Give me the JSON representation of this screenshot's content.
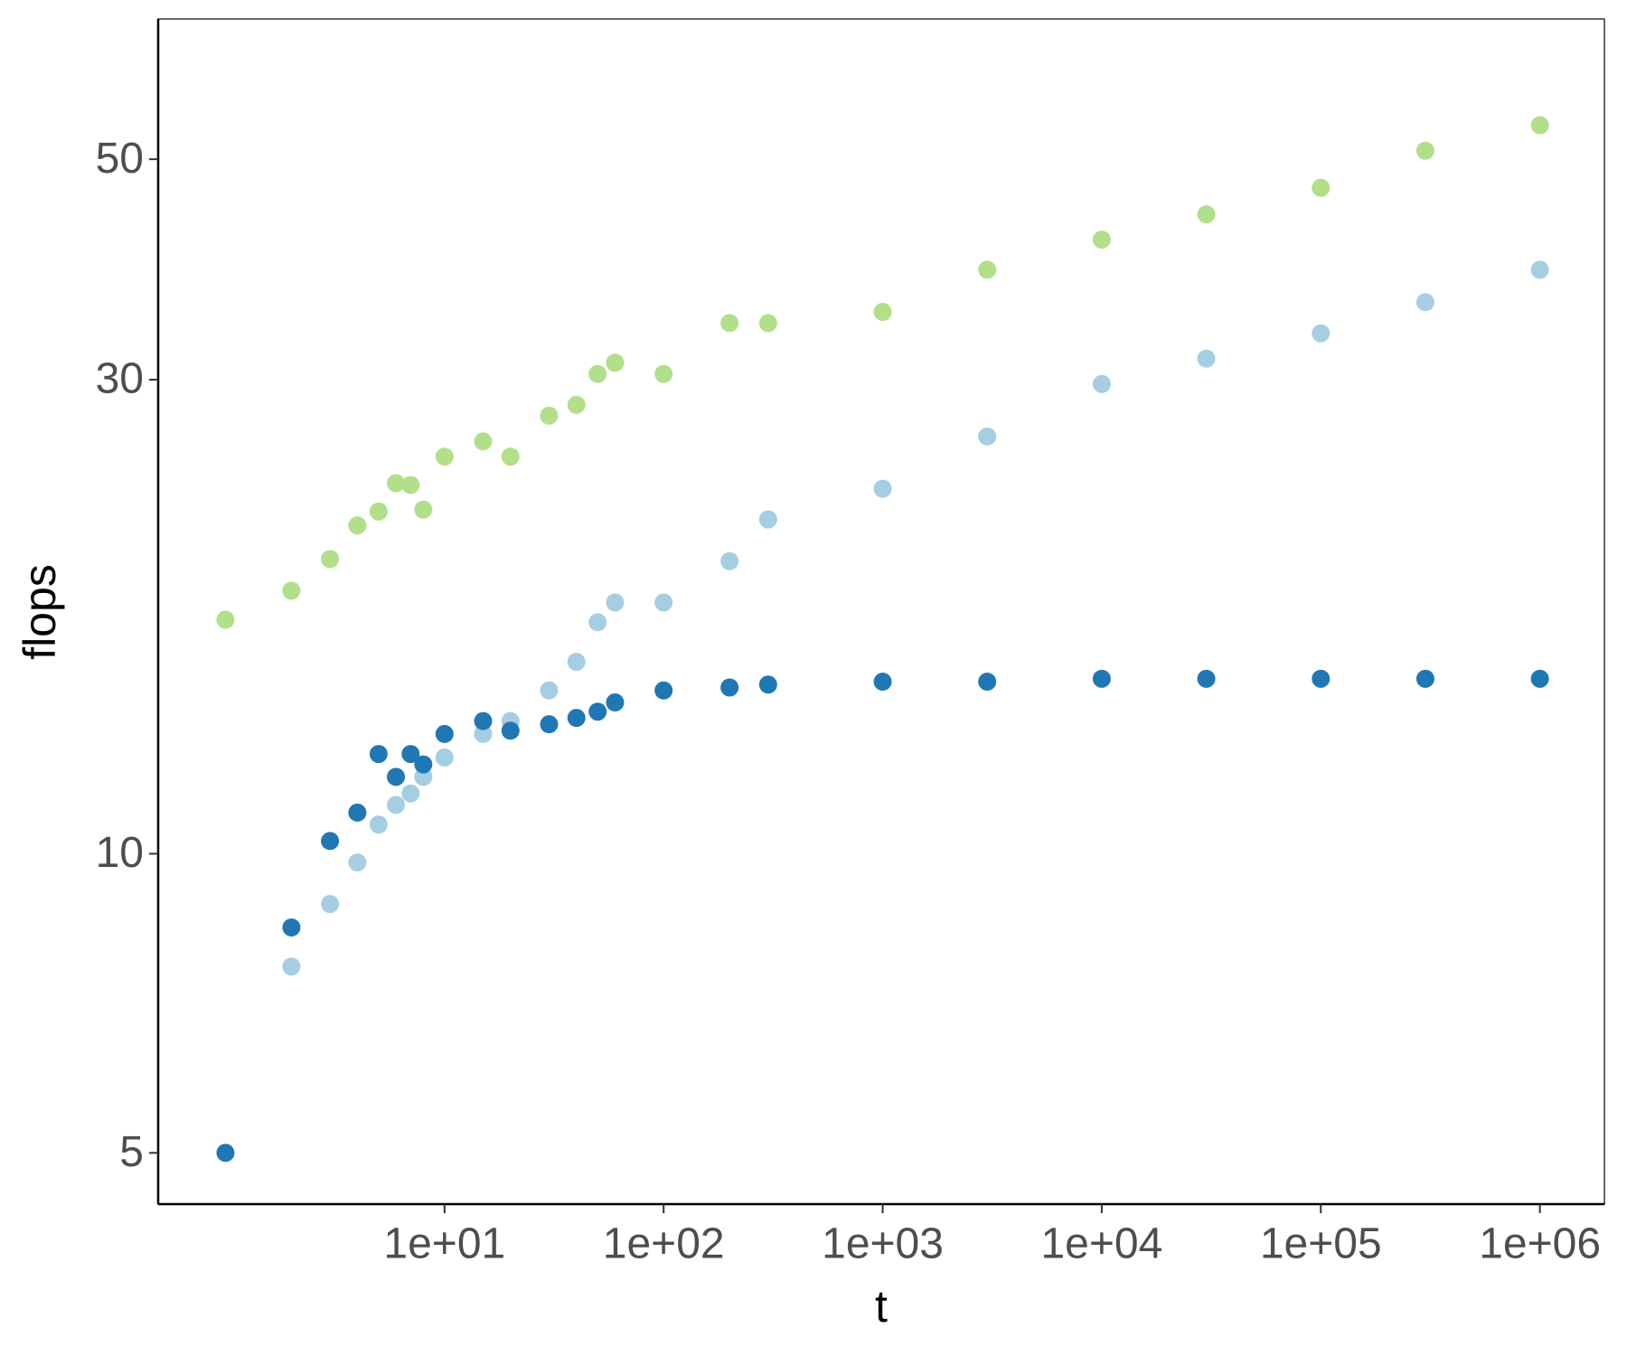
{
  "chart_data": {
    "type": "scatter",
    "x_label": "t",
    "y_label": "flops",
    "x_log": true,
    "y_log": true,
    "xlim": [
      0.493,
      1970000
    ],
    "ylim": [
      4.44,
      69.2
    ],
    "xticks": [
      {
        "value": 10,
        "label": "1e+01"
      },
      {
        "value": 100,
        "label": "1e+02"
      },
      {
        "value": 1000,
        "label": "1e+03"
      },
      {
        "value": 10000,
        "label": "1e+04"
      },
      {
        "value": 100000,
        "label": "1e+05"
      },
      {
        "value": 1000000,
        "label": "1e+06"
      }
    ],
    "yticks": [
      5,
      10,
      30,
      50
    ],
    "x": [
      1,
      2,
      3,
      4,
      5,
      6,
      7,
      8,
      10,
      15,
      20,
      30,
      40,
      50,
      60,
      100,
      200,
      300,
      1000,
      3000,
      10000,
      30000,
      100000,
      300000,
      1000000
    ],
    "series": [
      {
        "color": "#b2df8a",
        "values": [
          17.2,
          18.4,
          19.8,
          21.4,
          22.1,
          23.6,
          23.5,
          22.2,
          25.1,
          26.0,
          25.1,
          27.6,
          28.3,
          30.4,
          31.2,
          30.4,
          34.2,
          34.2,
          35.1,
          38.7,
          41.5,
          44.0,
          46.8,
          51.0,
          54.1
        ]
      },
      {
        "color": "#a6cee3",
        "values": [
          null,
          7.7,
          8.9,
          9.8,
          10.7,
          11.2,
          11.5,
          11.95,
          12.5,
          13.2,
          13.6,
          14.6,
          15.6,
          17.1,
          17.9,
          17.9,
          19.7,
          21.7,
          23.3,
          26.3,
          29.7,
          31.5,
          33.4,
          35.9,
          38.7
        ]
      },
      {
        "color": "#1f78b4",
        "values": [
          5,
          8.43,
          10.3,
          11.0,
          12.6,
          11.95,
          12.6,
          12.3,
          13.2,
          13.6,
          13.3,
          13.5,
          13.7,
          13.9,
          14.2,
          14.6,
          14.7,
          14.8,
          14.9,
          14.9,
          15,
          15,
          15,
          15,
          15
        ]
      }
    ]
  }
}
